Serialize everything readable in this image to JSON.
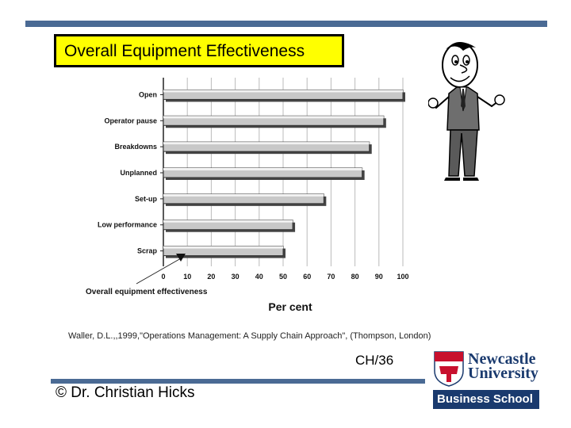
{
  "slide": {
    "title": "Overall Equipment Effectiveness",
    "citation": "Waller, D.L.,,1999,\"Operations Management: A Supply Chain Approach\", (Thompson, London)",
    "slide_number": "CH/36",
    "author": "© Dr. Christian Hicks"
  },
  "logo": {
    "line1": "Newcastle",
    "line2": "University",
    "school": "Business School"
  },
  "colors": {
    "rule": "#4a6a94",
    "title_bg": "#ffff00",
    "bar": "#c8c8c8",
    "brand": "#1a3a6e"
  },
  "chart_data": {
    "type": "bar",
    "orientation": "horizontal",
    "categories": [
      "Open",
      "Operator pause",
      "Breakdowns",
      "Unplanned",
      "Set-up",
      "Low performance",
      "Scrap"
    ],
    "values": [
      100,
      92,
      86,
      83,
      67,
      54,
      50
    ],
    "xlabel": "Per cent",
    "annotation": "Overall equipment effectiveness",
    "xticks": [
      0,
      10,
      20,
      30,
      40,
      50,
      60,
      70,
      80,
      90,
      100
    ],
    "xlim": [
      0,
      100
    ],
    "grid": true
  }
}
